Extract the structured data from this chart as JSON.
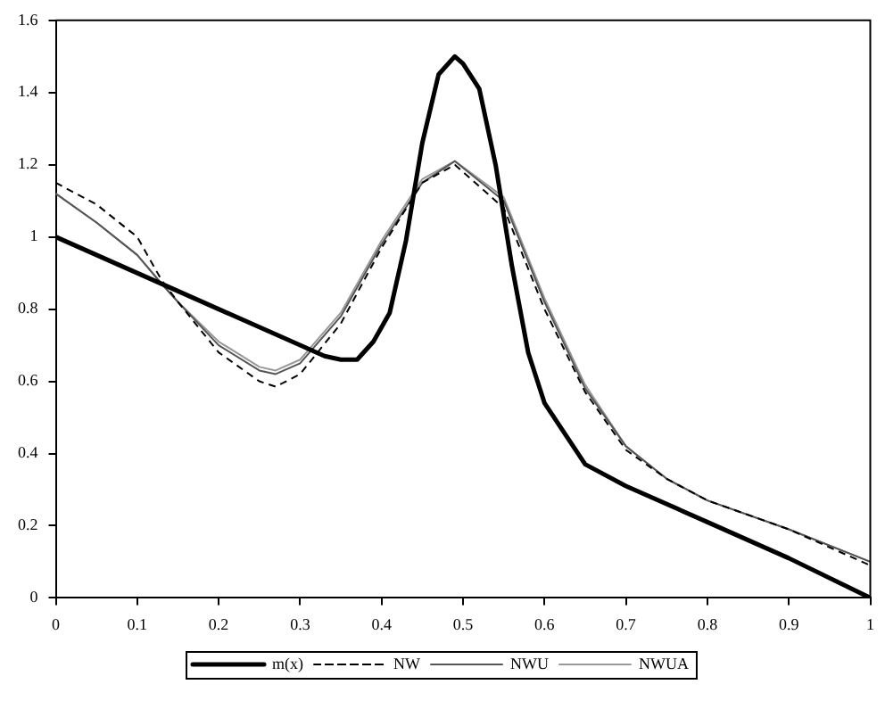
{
  "chart_data": {
    "type": "line",
    "xlim": [
      0,
      1
    ],
    "xticks": [
      0,
      0.1,
      0.2,
      0.3,
      0.4,
      0.5,
      0.6,
      0.7,
      0.8,
      0.9,
      1
    ],
    "ylim": [
      0,
      1.6
    ],
    "yticks": [
      0,
      0.2,
      0.4,
      0.6,
      0.8,
      1,
      1.2,
      1.4,
      1.6
    ],
    "grid": false,
    "legend": "bottom",
    "marker": "none",
    "series": [
      {
        "name": "m(x)",
        "color": "#000000",
        "line_style": "solid",
        "x": [
          0,
          0.1,
          0.2,
          0.3,
          0.33,
          0.35,
          0.37,
          0.39,
          0.41,
          0.43,
          0.45,
          0.47,
          0.49,
          0.5,
          0.52,
          0.54,
          0.56,
          0.58,
          0.6,
          0.65,
          0.7,
          0.8,
          0.9,
          1
        ],
        "values": [
          1.0,
          0.9,
          0.8,
          0.7,
          0.67,
          0.66,
          0.66,
          0.71,
          0.79,
          0.99,
          1.26,
          1.45,
          1.5,
          1.48,
          1.41,
          1.2,
          0.92,
          0.68,
          0.54,
          0.37,
          0.31,
          0.21,
          0.11,
          0
        ]
      },
      {
        "name": "NW",
        "color": "#000000",
        "line_style": "dashed",
        "x": [
          0,
          0.05,
          0.1,
          0.13,
          0.15,
          0.2,
          0.25,
          0.27,
          0.3,
          0.35,
          0.4,
          0.45,
          0.49,
          0.55,
          0.6,
          0.65,
          0.7,
          0.75,
          0.8,
          0.9,
          1
        ],
        "values": [
          1.15,
          1.09,
          1.0,
          0.88,
          0.82,
          0.68,
          0.6,
          0.585,
          0.62,
          0.76,
          0.97,
          1.15,
          1.2,
          1.08,
          0.8,
          0.57,
          0.41,
          0.33,
          0.27,
          0.19,
          0.09
        ]
      },
      {
        "name": "NWU",
        "color": "#555555",
        "line_style": "solid",
        "x": [
          0,
          0.05,
          0.1,
          0.13,
          0.15,
          0.2,
          0.25,
          0.27,
          0.3,
          0.35,
          0.4,
          0.45,
          0.49,
          0.55,
          0.6,
          0.65,
          0.7,
          0.75,
          0.8,
          0.9,
          1
        ],
        "values": [
          1.12,
          1.04,
          0.95,
          0.87,
          0.82,
          0.7,
          0.63,
          0.62,
          0.65,
          0.78,
          0.98,
          1.15,
          1.21,
          1.1,
          0.82,
          0.58,
          0.42,
          0.33,
          0.27,
          0.19,
          0.1
        ]
      },
      {
        "name": "NWUA",
        "color": "#999999",
        "line_style": "solid",
        "x": [
          0,
          0.05,
          0.1,
          0.13,
          0.15,
          0.2,
          0.25,
          0.27,
          0.3,
          0.35,
          0.4,
          0.45,
          0.49,
          0.55,
          0.6,
          0.65,
          0.7,
          0.75,
          0.8,
          0.9,
          1
        ],
        "values": [
          1.12,
          1.04,
          0.95,
          0.87,
          0.82,
          0.71,
          0.64,
          0.63,
          0.66,
          0.79,
          0.99,
          1.16,
          1.21,
          1.11,
          0.83,
          0.59,
          0.42,
          0.33,
          0.27,
          0.19,
          0.1
        ]
      }
    ]
  }
}
